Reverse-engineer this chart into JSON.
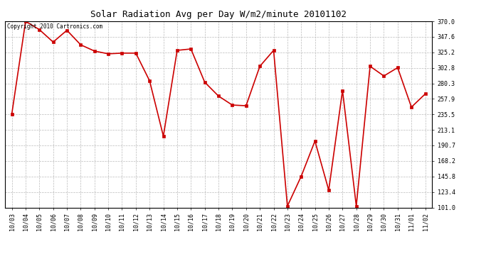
{
  "title": "Solar Radiation Avg per Day W/m2/minute 20101102",
  "copyright": "Copyright 2010 Cartronics.com",
  "labels": [
    "10/03",
    "10/04",
    "10/05",
    "10/06",
    "10/07",
    "10/08",
    "10/09",
    "10/10",
    "10/11",
    "10/12",
    "10/13",
    "10/14",
    "10/15",
    "10/16",
    "10/17",
    "10/18",
    "10/19",
    "10/20",
    "10/21",
    "10/22",
    "10/23",
    "10/24",
    "10/25",
    "10/26",
    "10/27",
    "10/28",
    "10/29",
    "10/30",
    "10/31",
    "11/01",
    "11/02"
  ],
  "values": [
    236,
    370,
    358,
    340,
    357,
    336,
    327,
    323,
    324,
    324,
    284,
    204,
    328,
    330,
    282,
    262,
    249,
    248,
    305,
    328,
    103,
    146,
    197,
    126,
    270,
    103,
    305,
    291,
    303,
    246,
    265
  ],
  "line_color": "#cc0000",
  "marker_color": "#cc0000",
  "bg_color": "#ffffff",
  "plot_bg_color": "#ffffff",
  "grid_color": "#bbbbbb",
  "ylim_min": 101.0,
  "ylim_max": 370.0,
  "yticks": [
    101.0,
    123.4,
    145.8,
    168.2,
    190.7,
    213.1,
    235.5,
    257.9,
    280.3,
    302.8,
    325.2,
    347.6,
    370.0
  ],
  "title_fontsize": 9,
  "tick_fontsize": 6,
  "copyright_fontsize": 5.5
}
